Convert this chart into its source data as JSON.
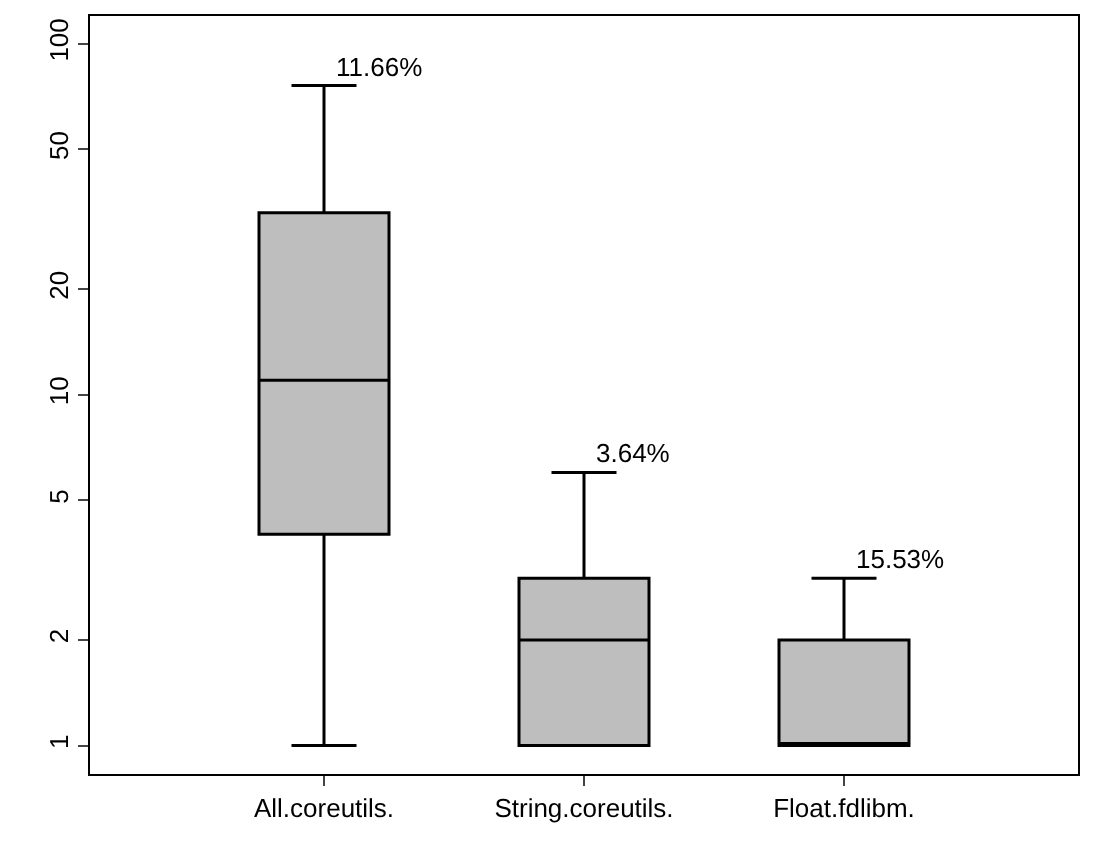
{
  "chart_data": {
    "type": "box",
    "categories": [
      "All.coreutils.",
      "String.coreutils.",
      "Float.fdlibm."
    ],
    "boxes": [
      {
        "low": 1,
        "q1": 4,
        "median": 11,
        "q3": 33,
        "high": 76
      },
      {
        "low": 1,
        "q1": 1,
        "median": 2,
        "q3": 3,
        "high": 6
      },
      {
        "low": 1,
        "q1": 1,
        "median": 1,
        "q3": 2,
        "high": 3
      }
    ],
    "color": "#bebebe",
    "log": true,
    "ylim": [
      0.83,
      120
    ],
    "yticks": [
      1,
      2,
      5,
      10,
      20,
      50,
      100
    ],
    "legend": false,
    "annotations": [
      {
        "text": "11.66%",
        "x": "All.coreutils.",
        "y": 76
      },
      {
        "text": "3.64%",
        "x": "String.coreutils.",
        "y": 6
      },
      {
        "text": "15.53%",
        "x": "Float.fdlibm.",
        "y": 3
      }
    ]
  }
}
